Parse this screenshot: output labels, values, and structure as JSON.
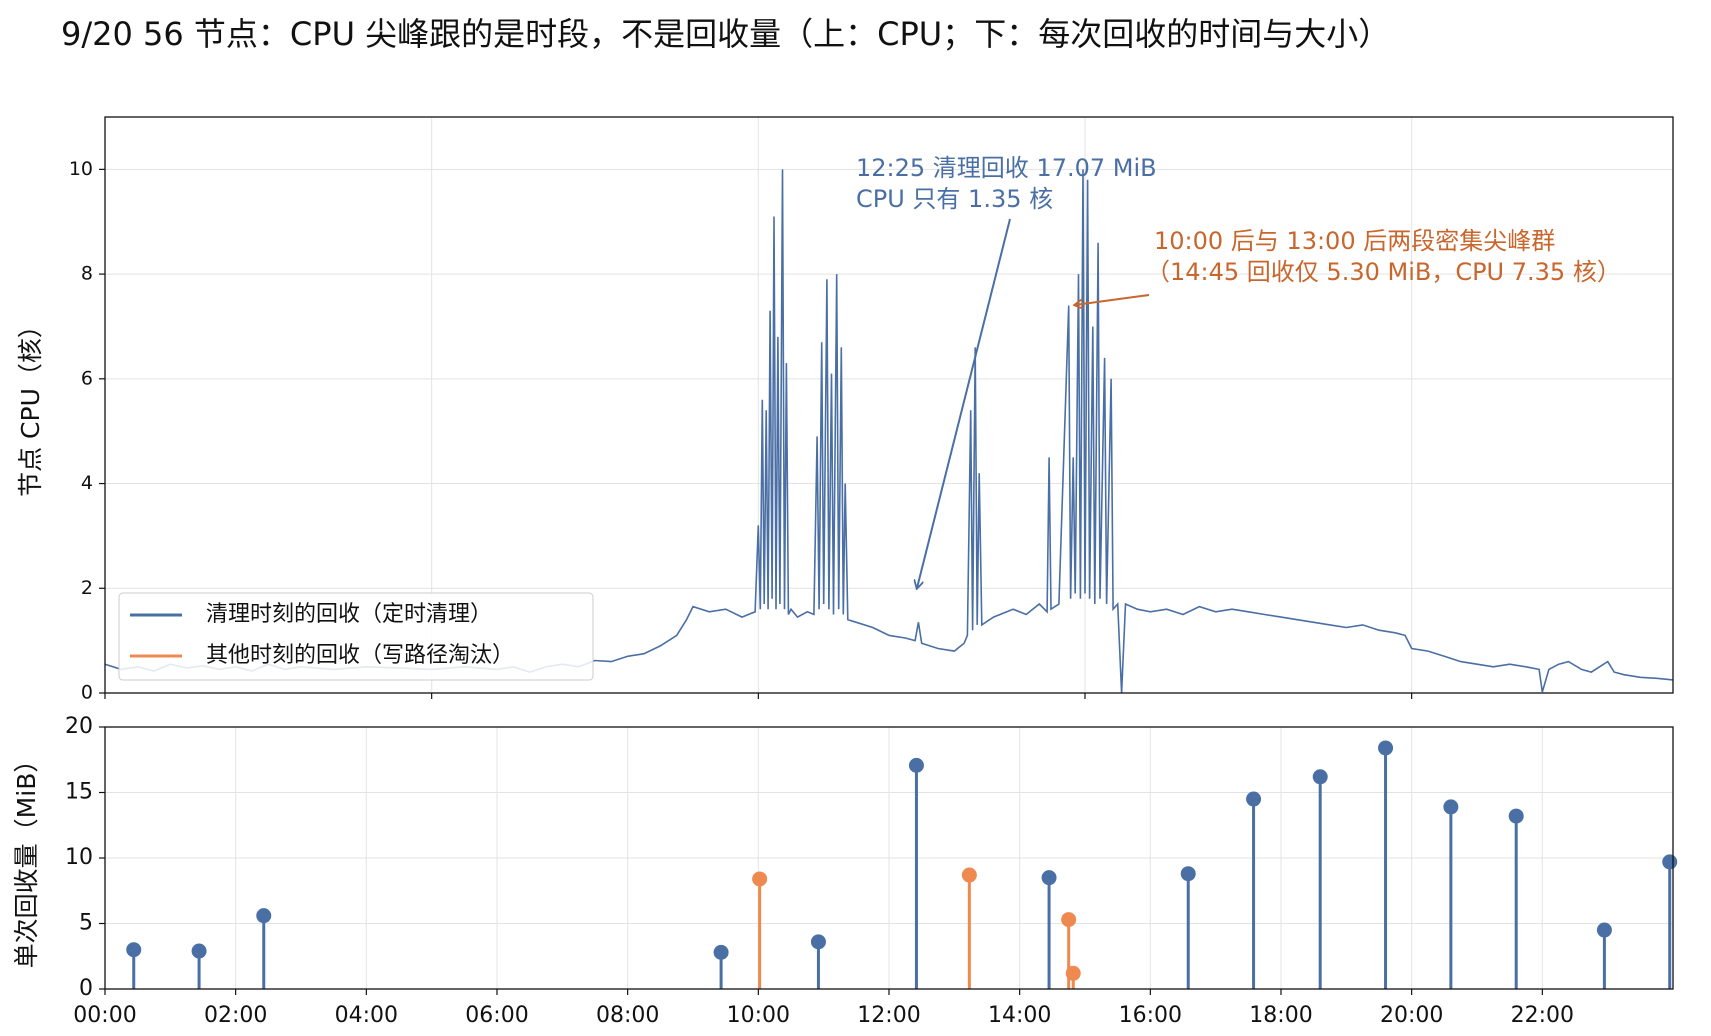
{
  "chart_data": [
    {
      "type": "line",
      "title": "9/20 56 节点：CPU 尖峰跟的是时段，不是回收量（上：CPU；下：每次回收的时间与大小）",
      "y_label": "节点 CPU（核）",
      "color": "#4a6fa5",
      "grid": true,
      "legend": "lower left",
      "xlim": [
        0,
        24
      ],
      "xticks": [
        0,
        5,
        10,
        15,
        20
      ],
      "ylim": [
        0,
        11
      ],
      "yticks": [
        0,
        2,
        4,
        6,
        8,
        10
      ],
      "annotations": [
        {
          "lines": [
            "12:25 清理回收 17.07 MiB",
            "CPU 只有 1.35 核"
          ],
          "color": "#4a6fa5"
        },
        {
          "lines": [
            "10:00 后与 13:00 后两段密集尖峰群",
            "（14:45 回收仅 5.30 MiB，CPU 7.35 核）"
          ],
          "color": "#c8662c"
        }
      ],
      "x": [
        0,
        0.25,
        0.5,
        0.75,
        1,
        1.25,
        1.5,
        1.75,
        2,
        2.25,
        2.5,
        2.75,
        3,
        3.5,
        4,
        4.5,
        5,
        5.5,
        6,
        6.25,
        6.5,
        6.75,
        7,
        7.25,
        7.5,
        7.75,
        8,
        8.25,
        8.5,
        8.75,
        8.9,
        9.0,
        9.25,
        9.5,
        9.75,
        9.95,
        10.0,
        10.03,
        10.06,
        10.09,
        10.12,
        10.15,
        10.18,
        10.21,
        10.24,
        10.27,
        10.3,
        10.33,
        10.37,
        10.4,
        10.43,
        10.46,
        10.5,
        10.6,
        10.75,
        10.85,
        10.9,
        10.93,
        10.97,
        11.0,
        11.05,
        11.08,
        11.12,
        11.15,
        11.2,
        11.23,
        11.27,
        11.3,
        11.33,
        11.37,
        11.5,
        11.75,
        12,
        12.25,
        12.4,
        12.45,
        12.5,
        12.75,
        13,
        13.15,
        13.2,
        13.25,
        13.28,
        13.32,
        13.35,
        13.38,
        13.42,
        13.6,
        13.9,
        14.1,
        14.3,
        14.42,
        14.45,
        14.48,
        14.6,
        14.75,
        14.78,
        14.82,
        14.85,
        14.9,
        14.93,
        14.97,
        15.0,
        15.04,
        15.07,
        15.12,
        15.15,
        15.2,
        15.23,
        15.3,
        15.33,
        15.4,
        15.43,
        15.5,
        15.56,
        15.62,
        15.8,
        16,
        16.25,
        16.5,
        16.75,
        17,
        17.25,
        17.5,
        17.75,
        18,
        18.25,
        18.5,
        18.75,
        19,
        19.25,
        19.5,
        19.75,
        19.9,
        20,
        20.25,
        20.5,
        20.75,
        21,
        21.25,
        21.5,
        21.75,
        21.95,
        22.0,
        22.1,
        22.25,
        22.4,
        22.6,
        22.75,
        23,
        23.1,
        23.25,
        23.5,
        23.75,
        24
      ],
      "values": [
        0.55,
        0.45,
        0.5,
        0.42,
        0.55,
        0.48,
        0.52,
        0.45,
        0.5,
        0.42,
        0.55,
        0.45,
        0.5,
        0.45,
        0.5,
        0.48,
        0.45,
        0.5,
        0.45,
        0.5,
        0.4,
        0.5,
        0.55,
        0.5,
        0.62,
        0.6,
        0.7,
        0.75,
        0.9,
        1.1,
        1.4,
        1.65,
        1.55,
        1.6,
        1.45,
        1.55,
        3.2,
        1.6,
        5.6,
        1.7,
        5.4,
        1.6,
        7.3,
        1.8,
        9.1,
        1.6,
        6.8,
        1.7,
        10.0,
        1.6,
        6.3,
        1.5,
        1.6,
        1.45,
        1.55,
        1.5,
        4.9,
        1.6,
        6.7,
        1.7,
        7.9,
        1.6,
        6.1,
        1.5,
        8.0,
        1.6,
        6.6,
        1.5,
        4.0,
        1.4,
        1.35,
        1.25,
        1.1,
        1.05,
        1.0,
        1.35,
        0.95,
        0.85,
        0.8,
        0.95,
        1.1,
        5.4,
        1.2,
        6.6,
        1.3,
        4.2,
        1.3,
        1.45,
        1.6,
        1.5,
        1.7,
        1.55,
        4.5,
        1.6,
        1.7,
        7.4,
        1.8,
        4.5,
        1.9,
        8.0,
        1.8,
        10.0,
        1.9,
        9.8,
        1.8,
        7.0,
        1.7,
        8.6,
        1.8,
        6.4,
        1.7,
        6.0,
        1.6,
        1.7,
        0.0,
        1.7,
        1.6,
        1.55,
        1.6,
        1.5,
        1.65,
        1.55,
        1.6,
        1.55,
        1.5,
        1.45,
        1.4,
        1.35,
        1.3,
        1.25,
        1.3,
        1.2,
        1.15,
        1.1,
        0.85,
        0.8,
        0.7,
        0.6,
        0.55,
        0.5,
        0.55,
        0.5,
        0.45,
        0.02,
        0.45,
        0.55,
        0.6,
        0.45,
        0.4,
        0.6,
        0.4,
        0.35,
        0.3,
        0.28,
        0.25
      ]
    },
    {
      "type": "stem",
      "y_label": "单次回收量（MiB）",
      "grid": true,
      "xlim": [
        0,
        24
      ],
      "xticks": [
        {
          "value": 0,
          "label": "00:00"
        },
        {
          "value": 2,
          "label": "02:00"
        },
        {
          "value": 4,
          "label": "04:00"
        },
        {
          "value": 6,
          "label": "06:00"
        },
        {
          "value": 8,
          "label": "08:00"
        },
        {
          "value": 10,
          "label": "10:00"
        },
        {
          "value": 12,
          "label": "12:00"
        },
        {
          "value": 14,
          "label": "14:00"
        },
        {
          "value": 16,
          "label": "16:00"
        },
        {
          "value": 18,
          "label": "18:00"
        },
        {
          "value": 20,
          "label": "20:00"
        },
        {
          "value": 22,
          "label": "22:00"
        }
      ],
      "ylim": [
        0,
        20
      ],
      "yticks": [
        0,
        5,
        10,
        15,
        20
      ],
      "series": [
        {
          "name": "清理时刻的回收（定时清理）",
          "color": "#4a6fa5",
          "x": [
            0.44,
            1.44,
            2.43,
            9.43,
            10.92,
            12.42,
            14.45,
            16.58,
            17.58,
            18.6,
            19.6,
            20.6,
            21.6,
            22.95,
            23.95
          ],
          "values": [
            3.0,
            2.9,
            5.6,
            2.8,
            3.6,
            17.07,
            8.5,
            8.8,
            14.5,
            16.2,
            18.4,
            13.9,
            13.2,
            4.5,
            9.7
          ]
        },
        {
          "name": "其他时刻的回收（写路径淘汰）",
          "color": "#ee8a4f",
          "x": [
            10.02,
            13.23,
            14.75,
            14.82
          ],
          "values": [
            8.4,
            8.7,
            5.3,
            1.2
          ]
        }
      ]
    }
  ]
}
